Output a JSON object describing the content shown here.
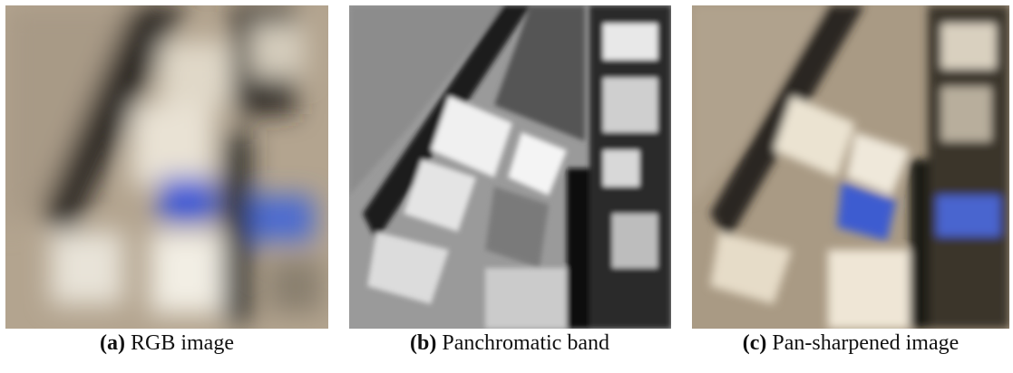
{
  "figure": {
    "panels": [
      {
        "label": "(a)",
        "caption": "RGB image"
      },
      {
        "label": "(b)",
        "caption": "Panchromatic band"
      },
      {
        "label": "(c)",
        "caption": "Pan-sharpened image"
      }
    ]
  }
}
